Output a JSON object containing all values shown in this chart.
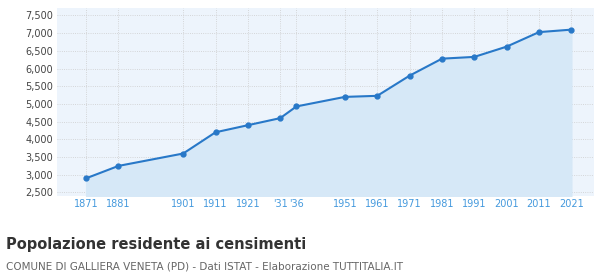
{
  "years": [
    1871,
    1881,
    1901,
    1911,
    1921,
    1931,
    1936,
    1951,
    1961,
    1971,
    1981,
    1991,
    2001,
    2011,
    2021
  ],
  "population": [
    2900,
    3250,
    3600,
    4200,
    4400,
    4600,
    4930,
    5200,
    5230,
    5800,
    6280,
    6330,
    6620,
    7030,
    7100
  ],
  "x_tick_labels": [
    "1871",
    "1881",
    "1901",
    "1911",
    "1921",
    "'31",
    "'36",
    "1951",
    "1961",
    "1971",
    "1981",
    "1991",
    "2001",
    "2011",
    "2021"
  ],
  "y_ticks": [
    2500,
    3000,
    3500,
    4000,
    4500,
    5000,
    5500,
    6000,
    6500,
    7000,
    7500
  ],
  "ylim": [
    2400,
    7700
  ],
  "line_color": "#2878c8",
  "fill_color": "#d6e8f7",
  "dot_color": "#2878c8",
  "grid_color": "#cccccc",
  "bg_color": "#edf4fc",
  "title": "Popolazione residente ai censimenti",
  "subtitle": "COMUNE DI GALLIERA VENETA (PD) - Dati ISTAT - Elaborazione TUTTITALIA.IT",
  "title_fontsize": 10.5,
  "subtitle_fontsize": 7.5,
  "tick_label_color": "#4499dd"
}
